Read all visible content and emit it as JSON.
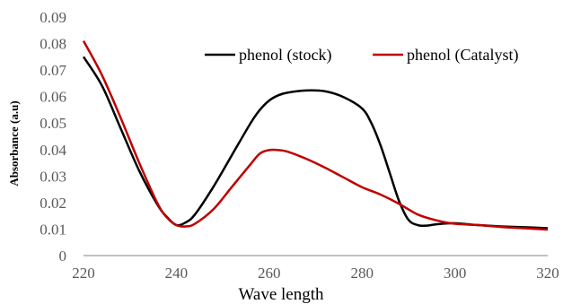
{
  "chart_data": {
    "type": "line",
    "xlabel": "Wave length",
    "ylabel": "Absorbance (a.u)",
    "xlim": [
      220,
      320
    ],
    "ylim": [
      0,
      0.09
    ],
    "x_ticks": [
      "220",
      "240",
      "260",
      "280",
      "300",
      "320"
    ],
    "y_ticks": [
      "0",
      "0.01",
      "0.02",
      "0.03",
      "0.04",
      "0.05",
      "0.06",
      "0.07",
      "0.08",
      "0.09"
    ],
    "grid": false,
    "legend_position": "top-right",
    "series": [
      {
        "name": "phenol (stock)",
        "color": "#000000",
        "x": [
          220,
          224,
          228,
          232,
          236,
          238,
          240,
          242,
          244,
          248,
          252,
          256,
          258,
          260,
          262,
          264,
          268,
          272,
          276,
          280,
          282,
          284,
          286,
          288,
          290,
          292,
          294,
          296,
          300,
          305,
          310,
          315,
          320
        ],
        "y": [
          0.075,
          0.064,
          0.048,
          0.032,
          0.019,
          0.0145,
          0.0115,
          0.0125,
          0.0155,
          0.026,
          0.038,
          0.05,
          0.055,
          0.0585,
          0.0605,
          0.0615,
          0.0623,
          0.062,
          0.0598,
          0.0555,
          0.05,
          0.0415,
          0.031,
          0.0205,
          0.0135,
          0.0115,
          0.0113,
          0.0118,
          0.0122,
          0.0115,
          0.011,
          0.0107,
          0.0103
        ]
      },
      {
        "name": "phenol (Catalyst)",
        "color": "#C00000",
        "x": [
          220,
          224,
          228,
          232,
          236,
          238,
          240,
          242,
          244,
          248,
          252,
          256,
          258,
          260,
          262,
          264,
          268,
          272,
          276,
          280,
          284,
          288,
          292,
          296,
          300,
          305,
          310,
          315,
          320
        ],
        "y": [
          0.081,
          0.068,
          0.052,
          0.035,
          0.0195,
          0.0143,
          0.0115,
          0.011,
          0.012,
          0.0175,
          0.026,
          0.0345,
          0.0385,
          0.0398,
          0.0398,
          0.0392,
          0.0365,
          0.0332,
          0.0295,
          0.0258,
          0.023,
          0.0195,
          0.0155,
          0.0133,
          0.012,
          0.0115,
          0.0108,
          0.0103,
          0.0098
        ]
      }
    ]
  }
}
